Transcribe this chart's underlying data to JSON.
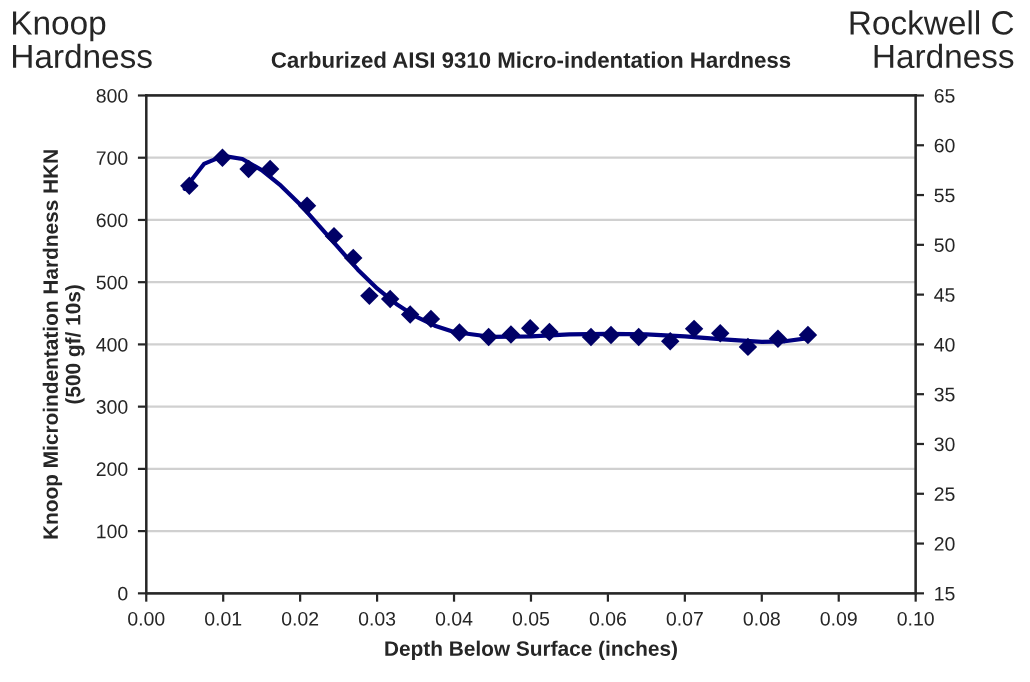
{
  "chart_data": {
    "type": "scatter",
    "title": "Carburized AISI 9310 Micro-indentation Hardness",
    "xlabel": "Depth Below Surface (inches)",
    "ylabel": "Knoop Microindentation Hardness HKN\n(500 gf/ 10s)",
    "y2label": "Rockwell C\nHardness",
    "annotations": [
      "Knoop\nHardness"
    ],
    "series": [
      {
        "marker": "diamond",
        "color": "#000066",
        "x": [
          0.0056,
          0.0099,
          0.0133,
          0.0161,
          0.0209,
          0.0244,
          0.0269,
          0.029,
          0.0317,
          0.0343,
          0.037,
          0.0407,
          0.0445,
          0.0474,
          0.0499,
          0.0524,
          0.0578,
          0.0604,
          0.064,
          0.0681,
          0.0712,
          0.0746,
          0.0782,
          0.0821,
          0.086
        ],
        "values": [
          655,
          700,
          682,
          682,
          623,
          574,
          539,
          478,
          473,
          448,
          441,
          419,
          412,
          416,
          426,
          420,
          412,
          415,
          412,
          405,
          425,
          418,
          396,
          409,
          415
        ]
      },
      {
        "type": "line",
        "marker": "none",
        "line_style": "solid",
        "color": "#000080",
        "x": [
          0.005,
          0.0075,
          0.01,
          0.0125,
          0.015,
          0.0175,
          0.02,
          0.0225,
          0.025,
          0.0275,
          0.03,
          0.0325,
          0.035,
          0.0375,
          0.04,
          0.045,
          0.05,
          0.055,
          0.06,
          0.065,
          0.07,
          0.075,
          0.08,
          0.083,
          0.086
        ],
        "values": [
          650,
          690,
          703,
          698,
          680,
          655,
          625,
          590,
          555,
          520,
          490,
          465,
          445,
          430,
          420,
          412,
          413,
          416,
          417,
          416,
          413,
          408,
          404,
          405,
          410
        ]
      }
    ],
    "xlim": [
      0,
      0.1
    ],
    "xticks": [
      {
        "value": 0,
        "label": "0.00"
      },
      {
        "value": 0.01,
        "label": "0.01"
      },
      {
        "value": 0.02,
        "label": "0.02"
      },
      {
        "value": 0.03,
        "label": "0.03"
      },
      {
        "value": 0.04,
        "label": "0.04"
      },
      {
        "value": 0.05,
        "label": "0.05"
      },
      {
        "value": 0.06,
        "label": "0.06"
      },
      {
        "value": 0.07,
        "label": "0.07"
      },
      {
        "value": 0.08,
        "label": "0.08"
      },
      {
        "value": 0.09,
        "label": "0.09"
      },
      {
        "value": 0.1,
        "label": "0.10"
      }
    ],
    "ylim": [
      0,
      800
    ],
    "yticks": [
      0,
      100,
      200,
      300,
      400,
      500,
      600,
      700,
      800
    ],
    "y2lim": [
      15,
      65
    ],
    "y2ticks": [
      15,
      20,
      25,
      30,
      35,
      40,
      45,
      50,
      55,
      60,
      65
    ],
    "grid": "y",
    "legend": false
  }
}
